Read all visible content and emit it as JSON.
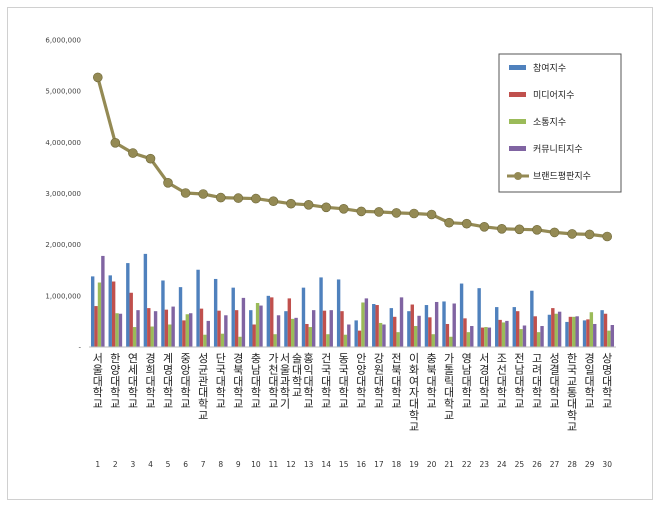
{
  "chart_data": {
    "type": "bar",
    "ylim": [
      0,
      6000000
    ],
    "y_ticks": [
      "-",
      "1,000,000",
      "2,000,000",
      "3,000,000",
      "4,000,000",
      "5,000,000",
      "6,000,000"
    ],
    "grid": false,
    "legend_position": "top-right",
    "ranks": [
      "1",
      "2",
      "3",
      "4",
      "5",
      "6",
      "7",
      "8",
      "9",
      "10",
      "11",
      "12",
      "13",
      "14",
      "15",
      "16",
      "17",
      "18",
      "19",
      "20",
      "21",
      "22",
      "23",
      "24",
      "25",
      "26",
      "27",
      "28",
      "29",
      "30"
    ],
    "categories": [
      "서울대학교",
      "한양대학교",
      "연세대학교",
      "경희대학교",
      "계명대학교",
      "중앙대학교",
      "성균관대학교",
      "단국대학교",
      "경북대학교",
      "충남대학교",
      "가천대학교",
      "서울과학기술대학교",
      "홍익대학교",
      "건국대학교",
      "동국대학교",
      "안양대학교",
      "강원대학교",
      "전북대학교",
      "이화여자대학교",
      "충북대학교",
      "가톨릭대학교",
      "영남대학교",
      "서경대학교",
      "조선대학교",
      "전남대학교",
      "고려대학교",
      "성결대학교",
      "한국교통대학교",
      "경일대학교",
      "상명대학교"
    ],
    "series": [
      {
        "name": "참여지수",
        "color": "#4f81bd",
        "values": [
          1380000,
          1400000,
          1640000,
          1820000,
          1300000,
          1170000,
          1510000,
          1330000,
          1160000,
          720000,
          1000000,
          700000,
          1160000,
          1360000,
          1320000,
          520000,
          840000,
          760000,
          700000,
          820000,
          890000,
          1240000,
          1150000,
          780000,
          780000,
          1100000,
          630000,
          490000,
          520000,
          720000
        ]
      },
      {
        "name": "미디어지수",
        "color": "#c0504d",
        "values": [
          800000,
          1280000,
          1060000,
          760000,
          730000,
          520000,
          750000,
          710000,
          720000,
          440000,
          970000,
          950000,
          450000,
          710000,
          700000,
          320000,
          820000,
          590000,
          830000,
          580000,
          450000,
          560000,
          380000,
          530000,
          700000,
          600000,
          760000,
          590000,
          540000,
          650000
        ]
      },
      {
        "name": "소통지수",
        "color": "#9bbb59",
        "values": [
          1260000,
          660000,
          390000,
          400000,
          440000,
          640000,
          240000,
          260000,
          200000,
          860000,
          250000,
          550000,
          390000,
          250000,
          240000,
          870000,
          470000,
          290000,
          410000,
          250000,
          200000,
          290000,
          390000,
          480000,
          350000,
          290000,
          650000,
          590000,
          680000,
          320000
        ]
      },
      {
        "name": "커뮤니티지수",
        "color": "#8064a2",
        "values": [
          1780000,
          650000,
          720000,
          700000,
          790000,
          660000,
          510000,
          620000,
          960000,
          810000,
          620000,
          570000,
          720000,
          720000,
          440000,
          950000,
          440000,
          970000,
          610000,
          880000,
          850000,
          410000,
          380000,
          510000,
          420000,
          410000,
          690000,
          600000,
          450000,
          430000
        ]
      }
    ],
    "line": {
      "name": "브랜드평판지수",
      "color": "#948a54",
      "values": [
        5270000,
        3990000,
        3790000,
        3680000,
        3210000,
        3010000,
        2990000,
        2920000,
        2910000,
        2900000,
        2850000,
        2800000,
        2780000,
        2730000,
        2700000,
        2650000,
        2640000,
        2620000,
        2610000,
        2590000,
        2430000,
        2410000,
        2350000,
        2310000,
        2300000,
        2290000,
        2240000,
        2210000,
        2200000,
        2160000
      ]
    }
  }
}
